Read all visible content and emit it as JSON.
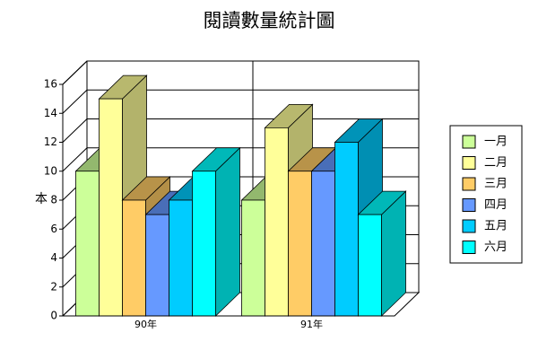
{
  "chart_data": {
    "type": "bar3d",
    "title": "閱讀數量統計圖",
    "y_label": "本",
    "categories": [
      "90年",
      "91年"
    ],
    "series": [
      {
        "name": "一月",
        "color": "#ccff99",
        "values": [
          10,
          8
        ]
      },
      {
        "name": "二月",
        "color": "#ffff99",
        "values": [
          15,
          13
        ]
      },
      {
        "name": "三月",
        "color": "#ffcc66",
        "values": [
          8,
          10
        ]
      },
      {
        "name": "四月",
        "color": "#6699ff",
        "values": [
          7,
          10
        ]
      },
      {
        "name": "五月",
        "color": "#00ccff",
        "values": [
          8,
          12
        ]
      },
      {
        "name": "六月",
        "color": "#00ffff",
        "values": [
          10,
          7
        ]
      }
    ],
    "ylim": [
      0,
      16
    ],
    "yticks": [
      0,
      2,
      4,
      6,
      8,
      10,
      12,
      14,
      16
    ],
    "grid": true,
    "legend": "right"
  }
}
